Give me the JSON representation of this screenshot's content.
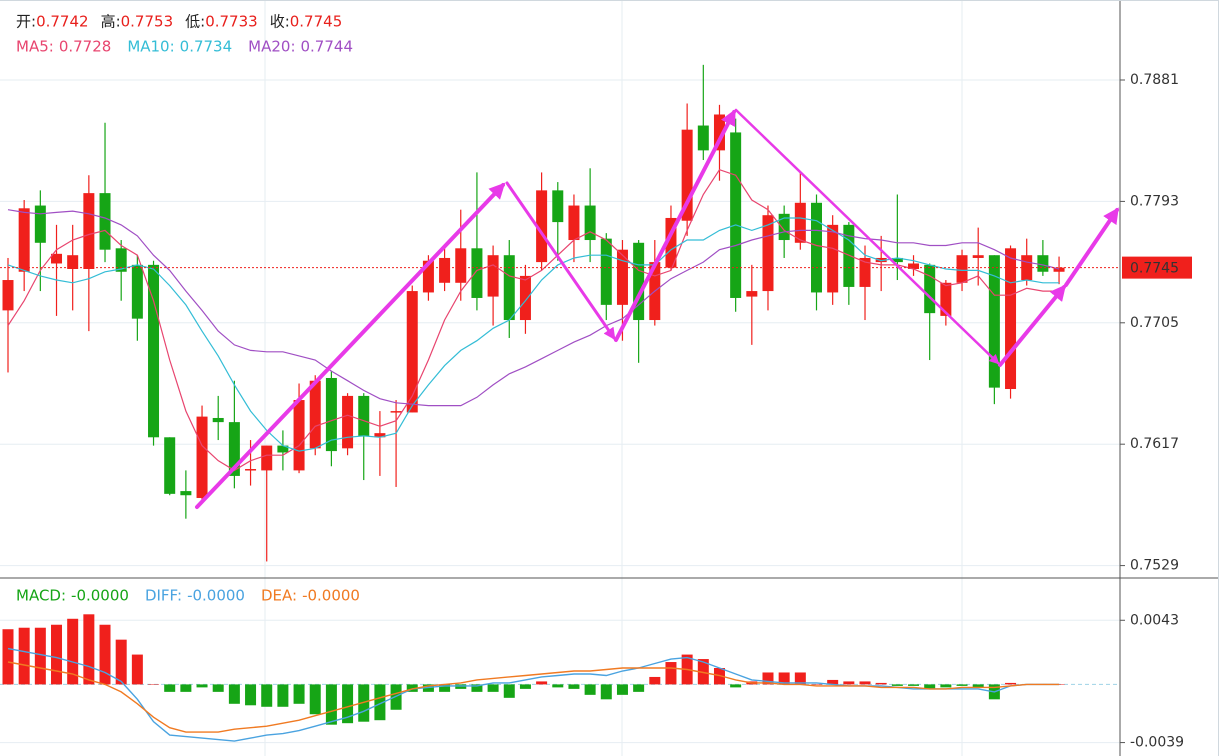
{
  "chart_data": [
    {
      "type": "candlestick",
      "header": [
        {
          "label": "开:",
          "value": 0.7742
        },
        {
          "label": "高:",
          "value": 0.7753
        },
        {
          "label": "低:",
          "value": 0.7733
        },
        {
          "label": "收:",
          "value": 0.7745
        }
      ],
      "open": [
        0.7714,
        0.7742,
        0.779,
        0.7748,
        0.7744,
        0.7744,
        0.7799,
        0.7759,
        0.7747,
        0.7747,
        0.7622,
        0.7583,
        0.7578,
        0.7636,
        0.7633,
        0.7598,
        0.7598,
        0.7616,
        0.7598,
        0.7614,
        0.7665,
        0.7614,
        0.7652,
        0.7622,
        0.764,
        0.764,
        0.7727,
        0.7734,
        0.7734,
        0.7759,
        0.7724,
        0.7754,
        0.7707,
        0.7749,
        0.7801,
        0.7765,
        0.779,
        0.7766,
        0.7718,
        0.7763,
        0.7707,
        0.7745,
        0.7779,
        0.7848,
        0.783,
        0.7843,
        0.7724,
        0.7728,
        0.7784,
        0.7763,
        0.7792,
        0.7727,
        0.7776,
        0.7731,
        0.7749,
        0.7752,
        0.7744,
        0.7747,
        0.771,
        0.7734,
        0.7752,
        0.7754,
        0.7657,
        0.7736,
        0.7754,
        0.7742
      ],
      "high": [
        0.7752,
        0.7794,
        0.7801,
        0.7776,
        0.7776,
        0.7812,
        0.785,
        0.7765,
        0.7754,
        0.775,
        0.7622,
        0.7598,
        0.7645,
        0.7652,
        0.7663,
        0.762,
        0.7616,
        0.7627,
        0.7661,
        0.7667,
        0.767,
        0.7654,
        0.7654,
        0.7641,
        0.7649,
        0.7732,
        0.7754,
        0.7759,
        0.7787,
        0.7814,
        0.7761,
        0.7765,
        0.7747,
        0.7814,
        0.7807,
        0.7798,
        0.7817,
        0.777,
        0.7765,
        0.7765,
        0.7765,
        0.779,
        0.7864,
        0.7892,
        0.7863,
        0.7853,
        0.7747,
        0.779,
        0.779,
        0.7814,
        0.7798,
        0.7783,
        0.7778,
        0.7761,
        0.7768,
        0.7798,
        0.7754,
        0.7748,
        0.7736,
        0.7758,
        0.7774,
        0.7754,
        0.7761,
        0.7766,
        0.7765,
        0.7753
      ],
      "low": [
        0.7669,
        0.7728,
        0.7728,
        0.771,
        0.7714,
        0.7699,
        0.7749,
        0.7721,
        0.7692,
        0.7616,
        0.758,
        0.7563,
        0.7576,
        0.762,
        0.7585,
        0.7587,
        0.7532,
        0.7598,
        0.7596,
        0.7609,
        0.7601,
        0.7609,
        0.7591,
        0.7594,
        0.7586,
        0.764,
        0.7721,
        0.7728,
        0.7721,
        0.7714,
        0.7703,
        0.7694,
        0.7697,
        0.7743,
        0.775,
        0.7749,
        0.7749,
        0.7707,
        0.7692,
        0.7676,
        0.7703,
        0.7743,
        0.7768,
        0.7823,
        0.7808,
        0.7713,
        0.7689,
        0.7714,
        0.7752,
        0.7758,
        0.7714,
        0.7718,
        0.7718,
        0.7707,
        0.7728,
        0.7736,
        0.7739,
        0.7678,
        0.7703,
        0.7728,
        0.7732,
        0.7646,
        0.765,
        0.7732,
        0.7739,
        0.7733
      ],
      "close": [
        0.7736,
        0.7788,
        0.7763,
        0.7755,
        0.7754,
        0.7799,
        0.7758,
        0.7742,
        0.7708,
        0.7622,
        0.7581,
        0.758,
        0.7637,
        0.7633,
        0.7594,
        0.7599,
        0.7616,
        0.7611,
        0.7649,
        0.7663,
        0.7612,
        0.7652,
        0.7623,
        0.7625,
        0.7641,
        0.7728,
        0.775,
        0.7752,
        0.7759,
        0.7723,
        0.7754,
        0.7707,
        0.7739,
        0.7801,
        0.7778,
        0.779,
        0.7765,
        0.7718,
        0.7758,
        0.7707,
        0.7749,
        0.7781,
        0.7845,
        0.783,
        0.7856,
        0.7723,
        0.7728,
        0.7783,
        0.7765,
        0.7792,
        0.7727,
        0.7776,
        0.7731,
        0.7752,
        0.7752,
        0.7749,
        0.7748,
        0.7712,
        0.7734,
        0.7754,
        0.7754,
        0.7658,
        0.7759,
        0.7754,
        0.7742,
        0.7745
      ],
      "up_color": "#f0201c",
      "down_color": "#16a516",
      "value_color": "#e8201c",
      "series": [
        {
          "name": "MA5:",
          "legend_value": 0.7728,
          "color": "#e8456f",
          "values": [
            0.7703,
            0.7721,
            0.7743,
            0.7758,
            0.7765,
            0.7769,
            0.7772,
            0.7761,
            0.7754,
            0.7721,
            0.7678,
            0.7641,
            0.7616,
            0.7605,
            0.7598,
            0.7605,
            0.7609,
            0.7609,
            0.7616,
            0.763,
            0.7634,
            0.7638,
            0.7634,
            0.763,
            0.7634,
            0.7652,
            0.7678,
            0.7707,
            0.7728,
            0.7743,
            0.7747,
            0.7739,
            0.7736,
            0.7743,
            0.7754,
            0.7765,
            0.7771,
            0.7765,
            0.7754,
            0.7743,
            0.7739,
            0.7743,
            0.7772,
            0.7798,
            0.7816,
            0.7812,
            0.7794,
            0.7787,
            0.7772,
            0.7765,
            0.7761,
            0.7759,
            0.7754,
            0.7749,
            0.7747,
            0.7747,
            0.7744,
            0.7739,
            0.7732,
            0.7734,
            0.7739,
            0.7725,
            0.7725,
            0.773,
            0.7728,
            0.7728
          ]
        },
        {
          "name": "MA10:",
          "legend_value": 0.7734,
          "color": "#34bdd6",
          "values": [
            0.7747,
            0.7743,
            0.7739,
            0.7736,
            0.7734,
            0.7737,
            0.7742,
            0.7744,
            0.7747,
            0.7744,
            0.7732,
            0.7718,
            0.7699,
            0.7681,
            0.766,
            0.7641,
            0.7627,
            0.7616,
            0.7612,
            0.7614,
            0.762,
            0.7622,
            0.7623,
            0.7622,
            0.7625,
            0.7645,
            0.766,
            0.7674,
            0.7685,
            0.7692,
            0.7701,
            0.7707,
            0.7721,
            0.7736,
            0.7747,
            0.7752,
            0.7754,
            0.7754,
            0.775,
            0.7747,
            0.7747,
            0.7758,
            0.7765,
            0.7765,
            0.7772,
            0.7776,
            0.7772,
            0.7776,
            0.7781,
            0.7781,
            0.7779,
            0.7772,
            0.7765,
            0.7754,
            0.775,
            0.7752,
            0.775,
            0.7747,
            0.7744,
            0.7743,
            0.7743,
            0.7739,
            0.7734,
            0.7736,
            0.7734,
            0.7734
          ]
        },
        {
          "name": "MA20:",
          "legend_value": 0.7744,
          "color": "#a04fc4",
          "values": [
            0.7787,
            0.7785,
            0.7784,
            0.7785,
            0.7786,
            0.7784,
            0.7781,
            0.7776,
            0.7768,
            0.7754,
            0.7743,
            0.7728,
            0.7714,
            0.7699,
            0.7689,
            0.7685,
            0.7684,
            0.7684,
            0.7681,
            0.7678,
            0.767,
            0.7663,
            0.7656,
            0.765,
            0.7647,
            0.7646,
            0.7645,
            0.7645,
            0.7645,
            0.7651,
            0.766,
            0.7668,
            0.7673,
            0.7679,
            0.7685,
            0.7691,
            0.7696,
            0.7703,
            0.7708,
            0.7718,
            0.7728,
            0.7737,
            0.7743,
            0.7749,
            0.7758,
            0.7761,
            0.7765,
            0.7768,
            0.7771,
            0.7772,
            0.7772,
            0.7771,
            0.7768,
            0.7766,
            0.7765,
            0.7763,
            0.7763,
            0.7761,
            0.7761,
            0.7763,
            0.7763,
            0.7758,
            0.7752,
            0.7749,
            0.7747,
            0.7744
          ]
        }
      ],
      "last_price": 0.7745,
      "ylim": [
        0.752,
        0.7939
      ],
      "yticks": [
        0.7881,
        0.7793,
        0.7705,
        0.7617,
        0.7529
      ],
      "grid": true
    },
    {
      "type": "macd",
      "histogram": {
        "name": "MACD:",
        "value_label": "-0.0000",
        "color": "#16a516",
        "up_color": "#f0201c",
        "down_color": "#16a516",
        "values": [
          0.0037,
          0.0038,
          0.0038,
          0.004,
          0.0044,
          0.0047,
          0.004,
          0.003,
          0.002,
          0,
          -0.0005,
          -0.0005,
          -0.0002,
          -0.0005,
          -0.0013,
          -0.0014,
          -0.0015,
          -0.0015,
          -0.0013,
          -0.002,
          -0.0027,
          -0.0026,
          -0.0025,
          -0.0024,
          -0.0017,
          -0.0005,
          -0.0005,
          -0.0005,
          -0.0003,
          -0.0005,
          -0.0005,
          -0.0009,
          -0.0003,
          0.0002,
          -0.0002,
          -0.0003,
          -0.0007,
          -0.001,
          -0.0007,
          -0.0005,
          0.0005,
          0.0015,
          0.002,
          0.0017,
          0.0011,
          -0.0002,
          0.0002,
          0.0008,
          0.0008,
          0.0008,
          0,
          0.0003,
          0.0002,
          0.0002,
          0.0001,
          -0.0001,
          -0.0001,
          -0.0003,
          -0.0002,
          -0.0001,
          -0.0002,
          -0.001,
          0.0001,
          0,
          0,
          0
        ]
      },
      "series": [
        {
          "name": "DIFF:",
          "value_label": "-0.0000",
          "color": "#4aa3e0",
          "values": [
            0.0024,
            0.0022,
            0.002,
            0.0018,
            0.0015,
            0.0012,
            0.0008,
            0.0002,
            -0.001,
            -0.0025,
            -0.0034,
            -0.0035,
            -0.0036,
            -0.0037,
            -0.0038,
            -0.0036,
            -0.0034,
            -0.0033,
            -0.0031,
            -0.0028,
            -0.0025,
            -0.0022,
            -0.0018,
            -0.0013,
            -0.0008,
            -0.0003,
            -0.0002,
            -0.0001,
            -0.0001,
            -0.0001,
            0.0001,
            0.0001,
            0.0003,
            0.0005,
            0.0006,
            0.0007,
            0.0007,
            0.0006,
            0.0009,
            0.0011,
            0.0014,
            0.0017,
            0.0018,
            0.0015,
            0.0011,
            0.0007,
            0.0003,
            0.0002,
            0.0001,
            0.0001,
            0.0001,
            0,
            -0.0001,
            -0.0001,
            -0.0001,
            -0.0002,
            -0.0003,
            -0.0003,
            -0.0003,
            -0.0003,
            -0.0003,
            -0.0005,
            -0.0001,
            0,
            0,
            0
          ]
        },
        {
          "name": "DEA:",
          "value_label": "-0.0000",
          "color": "#f07a22",
          "values": [
            0.0015,
            0.0013,
            0.0011,
            0.0009,
            0.0007,
            0.0003,
            0,
            -0.0005,
            -0.0013,
            -0.0022,
            -0.0029,
            -0.0032,
            -0.0032,
            -0.0032,
            -0.003,
            -0.0029,
            -0.0028,
            -0.0026,
            -0.0024,
            -0.0021,
            -0.0018,
            -0.0015,
            -0.0012,
            -0.0009,
            -0.0006,
            -0.0003,
            -0.0001,
            0,
            0.0001,
            0.0003,
            0.0004,
            0.0005,
            0.0006,
            0.0007,
            0.0008,
            0.0009,
            0.0009,
            0.001,
            0.0011,
            0.0011,
            0.0011,
            0.0011,
            0.001,
            0.0008,
            0.0006,
            0.0003,
            0.0001,
            0.0001,
            0,
            0,
            -0.0001,
            -0.0001,
            -0.0001,
            -0.0001,
            -0.0002,
            -0.0002,
            -0.0002,
            -0.0003,
            -0.0003,
            -0.0002,
            -0.0002,
            -0.0002,
            -0.0001,
            0,
            0,
            0
          ]
        }
      ],
      "ylim": [
        -0.0048,
        0.007
      ],
      "yticks": [
        0.0043,
        -0.0039
      ],
      "grid": true
    }
  ]
}
